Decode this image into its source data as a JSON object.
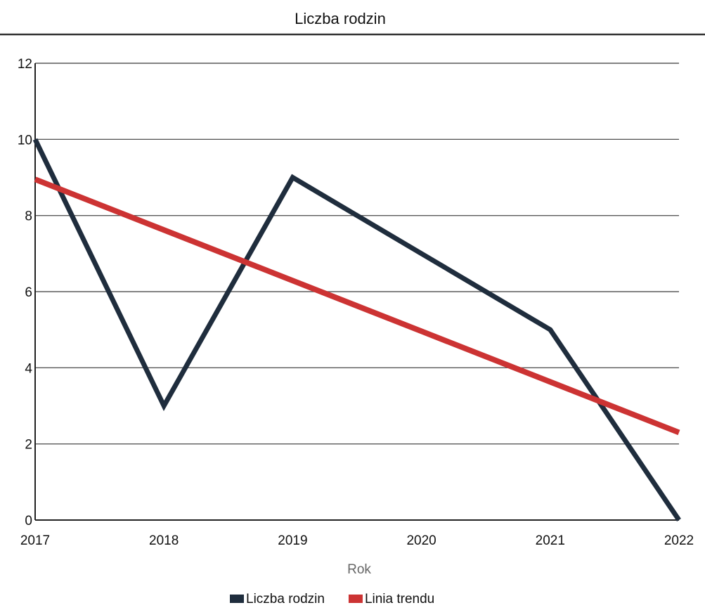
{
  "chart_data": {
    "type": "line",
    "title": "Liczba rodzin",
    "xlabel": "Rok",
    "ylabel": "",
    "categories": [
      "2017",
      "2018",
      "2019",
      "2020",
      "2021",
      "2022"
    ],
    "x": [
      2017,
      2018,
      2019,
      2020,
      2021,
      2022
    ],
    "ylim": [
      0,
      12
    ],
    "yticks": [
      0,
      2,
      4,
      6,
      8,
      10,
      12
    ],
    "grid": true,
    "legend_position": "bottom",
    "series": [
      {
        "name": "Liczba rodzin",
        "color": "#1f2d3d",
        "values": [
          10,
          3,
          9,
          7,
          5,
          0
        ]
      },
      {
        "name": "Linia trendu",
        "color": "#cc3333",
        "values": [
          8.95,
          7.62,
          6.29,
          4.96,
          3.63,
          2.3
        ]
      }
    ]
  }
}
